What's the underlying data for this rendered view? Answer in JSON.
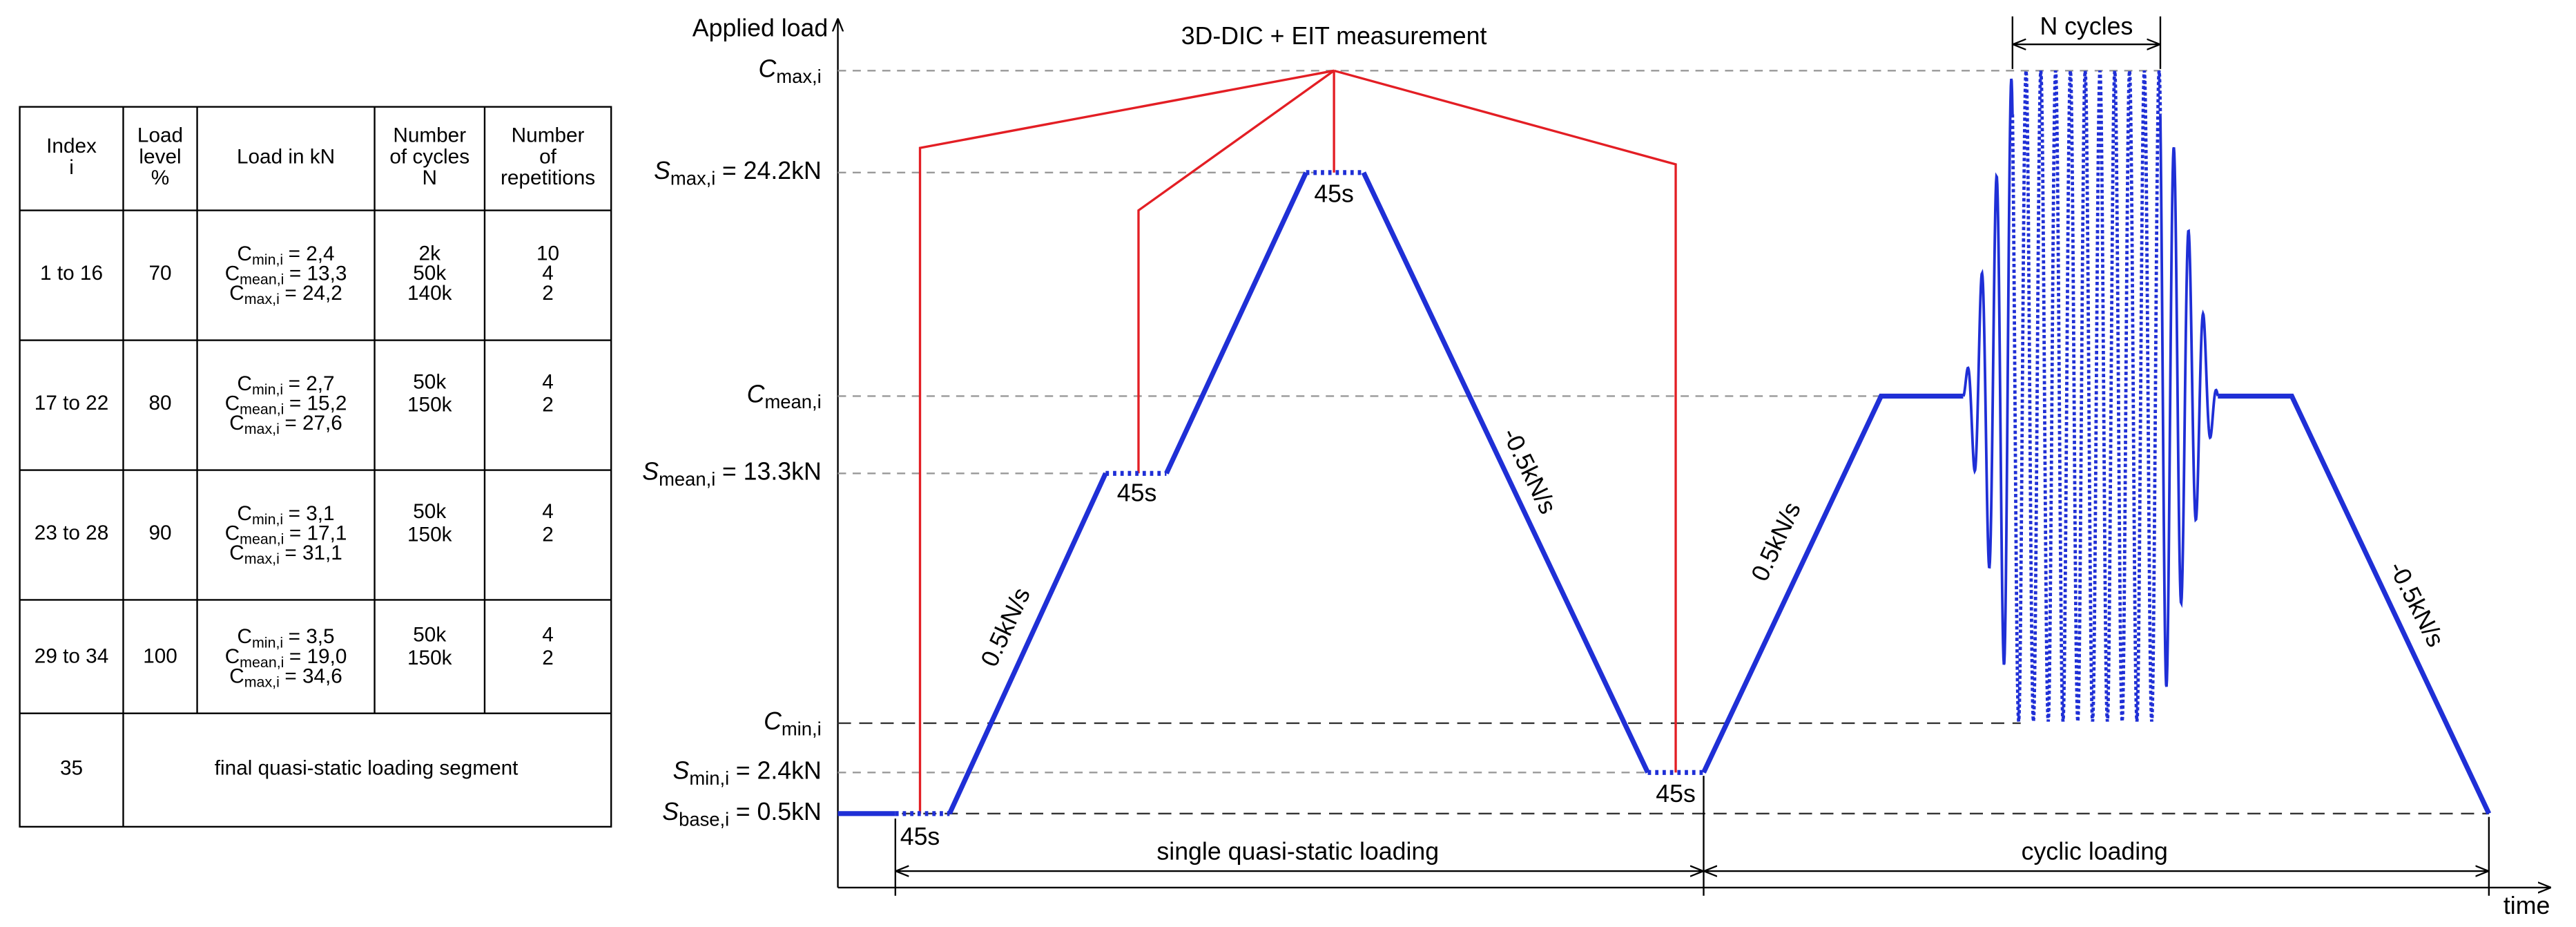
{
  "table": {
    "header": [
      [
        "Index",
        "i"
      ],
      [
        "Load",
        "level",
        "%"
      ],
      [
        "Load in kN"
      ],
      [
        "Number",
        "of cycles",
        "N"
      ],
      [
        "Number",
        "of",
        "repetitions"
      ]
    ],
    "rows": [
      {
        "index": "1 to 16",
        "level": "70",
        "loads": [
          {
            "symbol": "C",
            "subscript": "min,i",
            "value": "= 2,4"
          },
          {
            "symbol": "C",
            "subscript": "mean,i",
            "value": "= 13,3"
          },
          {
            "symbol": "C",
            "subscript": "max,i",
            "value": "= 24,2"
          }
        ],
        "cycles": [
          "2k",
          "50k",
          "140k"
        ],
        "repetitions": [
          "10",
          "4",
          "2"
        ]
      },
      {
        "index": "17 to 22",
        "level": "80",
        "loads": [
          {
            "symbol": "C",
            "subscript": "min,i",
            "value": "= 2,7"
          },
          {
            "symbol": "C",
            "subscript": "mean,i",
            "value": "= 15,2"
          },
          {
            "symbol": "C",
            "subscript": "max,i",
            "value": "= 27,6"
          }
        ],
        "cycles": [
          "50k",
          "150k"
        ],
        "repetitions": [
          "4",
          "2"
        ]
      },
      {
        "index": "23 to 28",
        "level": "90",
        "loads": [
          {
            "symbol": "C",
            "subscript": "min,i",
            "value": "= 3,1"
          },
          {
            "symbol": "C",
            "subscript": "mean,i",
            "value": "= 17,1"
          },
          {
            "symbol": "C",
            "subscript": "max,i",
            "value": "= 31,1"
          }
        ],
        "cycles": [
          "50k",
          "150k"
        ],
        "repetitions": [
          "4",
          "2"
        ]
      },
      {
        "index": "29 to 34",
        "level": "100",
        "loads": [
          {
            "symbol": "C",
            "subscript": "min,i",
            "value": "= 3,5"
          },
          {
            "symbol": "C",
            "subscript": "mean,i",
            "value": "= 19,0"
          },
          {
            "symbol": "C",
            "subscript": "max,i",
            "value": "= 34,6"
          }
        ],
        "cycles": [
          "50k",
          "150k"
        ],
        "repetitions": [
          "4",
          "2"
        ]
      }
    ],
    "final_row": {
      "index": "35",
      "description": "final quasi-static loading segment"
    }
  },
  "diagram": {
    "y_axis_label": "Applied load",
    "x_axis_label": "time",
    "measurement_label": "3D-DIC + EIT measurement",
    "cycles_label": "N cycles",
    "levels": [
      {
        "symbol": "C",
        "subscript": "max,i"
      },
      {
        "symbol": "S",
        "subscript": "max,i",
        "value": "= 24.2kN"
      },
      {
        "symbol": "C",
        "subscript": "mean,i"
      },
      {
        "symbol": "S",
        "subscript": "mean,i",
        "value": "= 13.3kN"
      },
      {
        "symbol": "C",
        "subscript": "min,i"
      },
      {
        "symbol": "S",
        "subscript": "min,i",
        "value": "= 2.4kN"
      },
      {
        "symbol": "S",
        "subscript": "base,i",
        "value": "= 0.5kN"
      }
    ],
    "hold_labels": [
      "45s",
      "45s",
      "45s",
      "45s"
    ],
    "rate_labels": [
      "0.5kN/s",
      "-0.5kN/s",
      "0.5kN/s",
      "-0.5kN/s"
    ],
    "phase_labels": [
      "single quasi-static loading",
      "cyclic loading"
    ]
  }
}
